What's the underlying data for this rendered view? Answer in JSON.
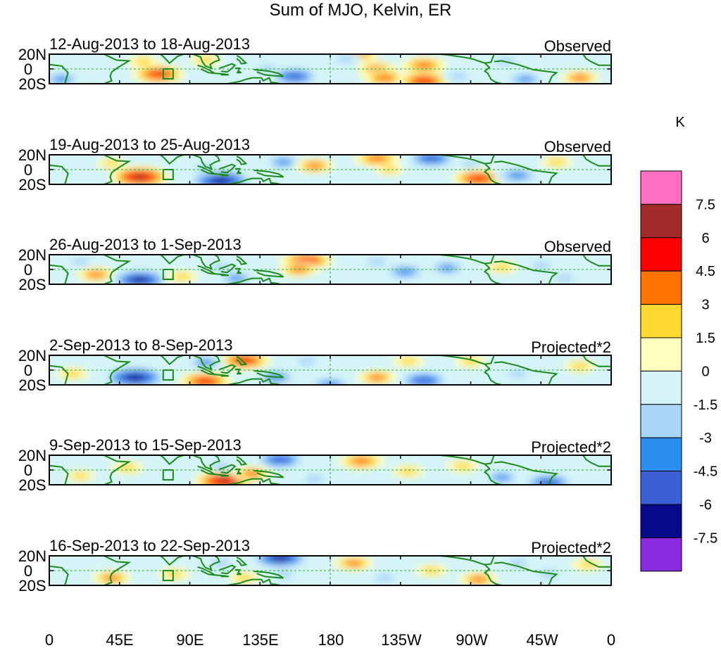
{
  "title": "Sum of MJO, Kelvin, ER",
  "panels": [
    {
      "dates": "12-Aug-2013 to 18-Aug-2013",
      "status": "Observed"
    },
    {
      "dates": "19-Aug-2013 to 25-Aug-2013",
      "status": "Observed"
    },
    {
      "dates": "26-Aug-2013 to 1-Sep-2013",
      "status": "Observed"
    },
    {
      "dates": "2-Sep-2013 to 8-Sep-2013",
      "status": "Projected*2"
    },
    {
      "dates": "9-Sep-2013 to 15-Sep-2013",
      "status": "Projected*2"
    },
    {
      "dates": "16-Sep-2013 to 22-Sep-2013",
      "status": "Projected*2"
    }
  ],
  "lat_labels": [
    "20N",
    "0",
    "20S"
  ],
  "lon_labels": [
    "0",
    "45E",
    "90E",
    "135E",
    "180",
    "135W",
    "90W",
    "45W",
    "0"
  ],
  "colorbar": {
    "unit": "K",
    "labels": [
      "7.5",
      "6",
      "4.5",
      "3",
      "1.5",
      "0",
      "-1.5",
      "-3",
      "-4.5",
      "-6",
      "-7.5"
    ],
    "colors": [
      "#ff6ec1",
      "#a52a2a",
      "#ff0000",
      "#ff7400",
      "#ffd92f",
      "#ffffc0",
      "#d4f4f8",
      "#a7d6f9",
      "#2c8ff0",
      "#3a5fd7",
      "#050a8c",
      "#8a2be2"
    ]
  },
  "colors": {
    "land": "#1a8a1a",
    "zero_line": "#3aa03a",
    "blob_warm": [
      "#ffffc0",
      "#ffd92f",
      "#ff7400",
      "#ff0000",
      "#a52a2a"
    ],
    "blob_cool": [
      "#d4f4f8",
      "#a7d6f9",
      "#2c8ff0",
      "#3a5fd7",
      "#050a8c"
    ]
  },
  "anomalies": [
    [
      {
        "lon": 70,
        "lat": -7,
        "v": 5
      },
      {
        "lon": 8,
        "lat": -14,
        "v": -3
      },
      {
        "lon": 60,
        "lat": 10,
        "v": 2
      },
      {
        "lon": 100,
        "lat": 12,
        "v": 2
      },
      {
        "lon": 140,
        "lat": 0,
        "v": -2
      },
      {
        "lon": 157,
        "lat": -10,
        "v": -5
      },
      {
        "lon": 198,
        "lat": 18,
        "v": 3
      },
      {
        "lon": 210,
        "lat": 0,
        "v": 3
      },
      {
        "lon": 240,
        "lat": 5,
        "v": 4
      },
      {
        "lon": 215,
        "lat": -12,
        "v": 4
      },
      {
        "lon": 240,
        "lat": -16,
        "v": 5
      },
      {
        "lon": 262,
        "lat": -10,
        "v": -2
      },
      {
        "lon": 292,
        "lat": 10,
        "v": -2
      },
      {
        "lon": 305,
        "lat": -14,
        "v": -3
      },
      {
        "lon": 340,
        "lat": -12,
        "v": 3
      },
      {
        "lon": 190,
        "lat": 14,
        "v": -2
      }
    ],
    [
      {
        "lon": 58,
        "lat": -10,
        "v": 6
      },
      {
        "lon": 110,
        "lat": -15,
        "v": -7
      },
      {
        "lon": 100,
        "lat": 2,
        "v": -2
      },
      {
        "lon": 150,
        "lat": 10,
        "v": -3
      },
      {
        "lon": 170,
        "lat": 5,
        "v": 3
      },
      {
        "lon": 210,
        "lat": 15,
        "v": 4
      },
      {
        "lon": 245,
        "lat": 15,
        "v": -5
      },
      {
        "lon": 218,
        "lat": 0,
        "v": 1.5
      },
      {
        "lon": 275,
        "lat": -12,
        "v": 5
      },
      {
        "lon": 300,
        "lat": -8,
        "v": -4
      },
      {
        "lon": 40,
        "lat": 8,
        "v": 1.5
      },
      {
        "lon": 325,
        "lat": 10,
        "v": 2
      },
      {
        "lon": 270,
        "lat": 8,
        "v": -1.5
      }
    ],
    [
      {
        "lon": 30,
        "lat": -7,
        "v": 3
      },
      {
        "lon": 58,
        "lat": -14,
        "v": -6
      },
      {
        "lon": 85,
        "lat": -10,
        "v": 2
      },
      {
        "lon": 110,
        "lat": 3,
        "v": -2
      },
      {
        "lon": 120,
        "lat": -12,
        "v": -3
      },
      {
        "lon": 165,
        "lat": 12,
        "v": 5
      },
      {
        "lon": 160,
        "lat": 0,
        "v": 3
      },
      {
        "lon": 210,
        "lat": 10,
        "v": -2
      },
      {
        "lon": 228,
        "lat": -3,
        "v": -4
      },
      {
        "lon": 255,
        "lat": 2,
        "v": -3
      },
      {
        "lon": 290,
        "lat": 3,
        "v": 2
      },
      {
        "lon": 315,
        "lat": 5,
        "v": -2
      },
      {
        "lon": 330,
        "lat": -12,
        "v": -2
      },
      {
        "lon": 20,
        "lat": 10,
        "v": -1.5
      }
    ],
    [
      {
        "lon": 55,
        "lat": -10,
        "v": -7
      },
      {
        "lon": 100,
        "lat": -15,
        "v": 5
      },
      {
        "lon": 125,
        "lat": 13,
        "v": 5
      },
      {
        "lon": 100,
        "lat": 10,
        "v": -3
      },
      {
        "lon": 145,
        "lat": -10,
        "v": -4
      },
      {
        "lon": 180,
        "lat": -20,
        "v": -4
      },
      {
        "lon": 210,
        "lat": -10,
        "v": 3
      },
      {
        "lon": 240,
        "lat": -14,
        "v": -5
      },
      {
        "lon": 230,
        "lat": 12,
        "v": 2
      },
      {
        "lon": 270,
        "lat": 12,
        "v": 2
      },
      {
        "lon": 300,
        "lat": -5,
        "v": -2
      },
      {
        "lon": 15,
        "lat": -5,
        "v": 2
      },
      {
        "lon": 340,
        "lat": 5,
        "v": 2
      },
      {
        "lon": 165,
        "lat": 12,
        "v": -2
      }
    ],
    [
      {
        "lon": 112,
        "lat": -15,
        "v": 6
      },
      {
        "lon": 148,
        "lat": 14,
        "v": -5
      },
      {
        "lon": 110,
        "lat": 5,
        "v": -2
      },
      {
        "lon": 200,
        "lat": 12,
        "v": 4
      },
      {
        "lon": 230,
        "lat": -2,
        "v": 2
      },
      {
        "lon": 265,
        "lat": 5,
        "v": 2
      },
      {
        "lon": 290,
        "lat": -10,
        "v": -3
      },
      {
        "lon": 320,
        "lat": -17,
        "v": -5
      },
      {
        "lon": 50,
        "lat": 3,
        "v": 2
      },
      {
        "lon": 20,
        "lat": -8,
        "v": 1.5
      },
      {
        "lon": 130,
        "lat": -5,
        "v": 3
      },
      {
        "lon": 170,
        "lat": -12,
        "v": -2
      }
    ],
    [
      {
        "lon": 148,
        "lat": 17,
        "v": -6
      },
      {
        "lon": 40,
        "lat": -10,
        "v": 3
      },
      {
        "lon": 80,
        "lat": -5,
        "v": 2
      },
      {
        "lon": 110,
        "lat": 10,
        "v": -2
      },
      {
        "lon": 125,
        "lat": -10,
        "v": 2
      },
      {
        "lon": 150,
        "lat": -5,
        "v": -2
      },
      {
        "lon": 195,
        "lat": 10,
        "v": 3
      },
      {
        "lon": 215,
        "lat": -10,
        "v": -2
      },
      {
        "lon": 245,
        "lat": 0,
        "v": 2
      },
      {
        "lon": 275,
        "lat": -12,
        "v": 3
      },
      {
        "lon": 300,
        "lat": 10,
        "v": -2
      },
      {
        "lon": 320,
        "lat": -5,
        "v": -2
      },
      {
        "lon": 345,
        "lat": 8,
        "v": 2
      }
    ]
  ]
}
